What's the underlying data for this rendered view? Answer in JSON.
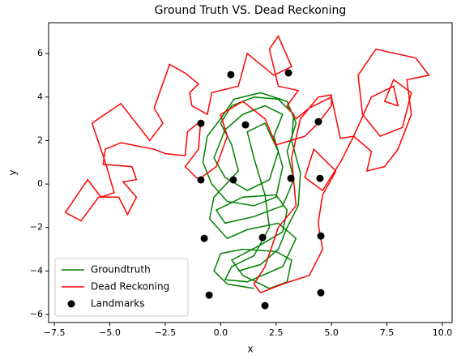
{
  "chart_data": {
    "type": "line",
    "title": "Ground Truth VS. Dead Reckoning",
    "xlabel": "x",
    "ylabel": "y",
    "xlim": [
      -7.76,
      10.44
    ],
    "ylim": [
      -6.37,
      7.42
    ],
    "xticks": [
      {
        "value": -7.5,
        "label": "−7.5"
      },
      {
        "value": -5,
        "label": "−5.0"
      },
      {
        "value": -2.5,
        "label": "−2.5"
      },
      {
        "value": 0,
        "label": "0.0"
      },
      {
        "value": 2.5,
        "label": "2.5"
      },
      {
        "value": 5,
        "label": "5.0"
      },
      {
        "value": 7.5,
        "label": "7.5"
      },
      {
        "value": 10,
        "label": "10.0"
      }
    ],
    "yticks": [
      {
        "value": -6,
        "label": "−6"
      },
      {
        "value": -4,
        "label": "−4"
      },
      {
        "value": -2,
        "label": "−2"
      },
      0,
      2,
      4,
      6
    ],
    "legend": "lower left",
    "series": [
      {
        "name": "Groundtruth",
        "color": "#008000",
        "kind": "line",
        "x": [
          1.5,
          0.3,
          -0.3,
          0.0,
          1.0,
          2.5,
          3.2,
          3.0,
          2.2,
          1.0,
          0.5,
          1.8,
          2.8,
          3.0,
          2.5,
          1.0,
          -0.2,
          0.2,
          1.5,
          2.8,
          3.3,
          3.0,
          3.4,
          3.0,
          1.8,
          0.6,
          0.0,
          -0.6,
          -0.8,
          -0.4,
          0.3,
          1.5,
          2.5,
          2.8,
          2.4,
          2.8,
          2.0,
          1.0,
          0.2,
          -0.3,
          0.2,
          1.2,
          2.2,
          2.6,
          2.0,
          1.2,
          1.5,
          2.0,
          2.2,
          1.5,
          0.5,
          0.2,
          1.2,
          2.8,
          3.4,
          2.6,
          1.2,
          0.3,
          -0.5,
          -0.3,
          0.8,
          0.5,
          0.0,
          0.5,
          1.5,
          2.6,
          3.3,
          3.2,
          3.6,
          3.5,
          3.0,
          2.6,
          1.8,
          0.8
        ],
        "y": [
          -4.8,
          -4.6,
          -4.0,
          -3.2,
          -3.0,
          -3.1,
          -3.5,
          -4.5,
          -4.8,
          -4.2,
          -3.5,
          -2.8,
          -2.2,
          -1.2,
          -0.5,
          -0.6,
          -1.2,
          -1.8,
          -1.5,
          -1.0,
          0.2,
          1.5,
          2.8,
          3.8,
          4.2,
          3.9,
          3.0,
          2.2,
          1.0,
          0.0,
          -0.8,
          -1.0,
          -0.6,
          0.8,
          2.2,
          3.2,
          3.6,
          3.2,
          2.5,
          1.2,
          0.3,
          -0.3,
          0.2,
          1.5,
          2.8,
          2.4,
          1.2,
          -0.5,
          -2.0,
          -3.3,
          -3.8,
          -4.4,
          -4.5,
          -3.8,
          -2.5,
          -1.8,
          -2.1,
          -2.5,
          -1.6,
          -0.6,
          0.6,
          1.8,
          2.8,
          3.6,
          4.0,
          3.9,
          3.2,
          2.0,
          0.5,
          -1.0,
          -2.0,
          -3.0,
          -3.7,
          -4.0
        ]
      },
      {
        "name": "Dead Reckoning",
        "color": "#ff0000",
        "kind": "line",
        "x": [
          1.8,
          2.8,
          4.0,
          4.6,
          4.4,
          4.6,
          5.2,
          4.2,
          3.8,
          4.6,
          5.4,
          6.0,
          6.8,
          6.6,
          7.4,
          8.0,
          8.6,
          8.4,
          9.4,
          8.8,
          7.0,
          6.2,
          6.4,
          7.2,
          8.2,
          8.6,
          7.8,
          7.4,
          8.0,
          7.8,
          6.8,
          6.0,
          5.4,
          5.0,
          4.0,
          3.4,
          3.0,
          3.5,
          2.6,
          2.2,
          2.6,
          3.2,
          2.4,
          1.2,
          0.8,
          -0.4,
          -0.6,
          -1.3,
          -1.4,
          -1.0,
          -1.6,
          -2.3,
          -3.0,
          -2.6,
          -3.2,
          -4.5,
          -5.8,
          -5.2,
          -4.8,
          -5.4,
          -6.0,
          -7.0,
          -6.3,
          -5.5,
          -4.6,
          -4.2,
          -3.8,
          -4.4,
          -3.8,
          -4.0,
          -5.3,
          -5.2,
          -4.5,
          -3.0,
          -2.5,
          -1.6,
          -1.5,
          -0.9,
          -1.0,
          -1.6,
          -1.0,
          -0.2,
          0.3,
          0.0,
          1.0,
          2.0,
          2.5,
          3.8,
          4.4,
          5.0,
          5.0,
          4.4,
          3.6,
          3.2,
          3.4,
          2.6,
          2.0,
          1.5,
          1.8
        ],
        "y": [
          -5.0,
          -4.6,
          -4.2,
          -3.0,
          -1.8,
          -0.5,
          0.6,
          1.6,
          0.3,
          -0.3,
          1.0,
          2.2,
          1.5,
          0.6,
          0.8,
          1.6,
          3.2,
          4.8,
          5.0,
          5.8,
          6.2,
          5.0,
          3.2,
          2.2,
          2.6,
          4.2,
          4.8,
          3.8,
          3.6,
          4.5,
          4.0,
          2.2,
          2.1,
          4.0,
          3.5,
          3.0,
          3.6,
          4.3,
          4.5,
          6.2,
          6.8,
          5.4,
          5.0,
          6.0,
          4.5,
          4.2,
          3.2,
          3.6,
          4.2,
          4.6,
          5.1,
          5.5,
          3.5,
          2.8,
          2.0,
          3.7,
          2.8,
          1.0,
          -0.4,
          -0.6,
          0.2,
          -1.3,
          -1.7,
          -0.6,
          -0.6,
          -1.4,
          -0.6,
          0.1,
          0.2,
          0.8,
          0.9,
          1.6,
          1.9,
          1.6,
          1.4,
          1.3,
          2.4,
          2.9,
          1.6,
          0.8,
          0.2,
          0.8,
          2.2,
          3.2,
          3.8,
          3.0,
          1.8,
          2.2,
          2.8,
          3.6,
          4.1,
          4.0,
          3.0,
          1.2,
          -1.0,
          -2.0,
          -3.8,
          -4.6,
          -5.0
        ]
      },
      {
        "name": "Landmarks",
        "color": "#000000",
        "kind": "scatter",
        "x": [
          0.46,
          3.06,
          -0.89,
          1.12,
          4.41,
          -0.89,
          0.57,
          3.17,
          4.48,
          -0.74,
          1.89,
          4.52,
          -0.52,
          4.52,
          2.0
        ],
        "y": [
          5.03,
          5.11,
          2.79,
          2.72,
          2.87,
          0.19,
          0.19,
          0.26,
          0.26,
          -2.5,
          -2.46,
          -2.39,
          -5.11,
          -5.0,
          -5.59
        ]
      }
    ]
  }
}
